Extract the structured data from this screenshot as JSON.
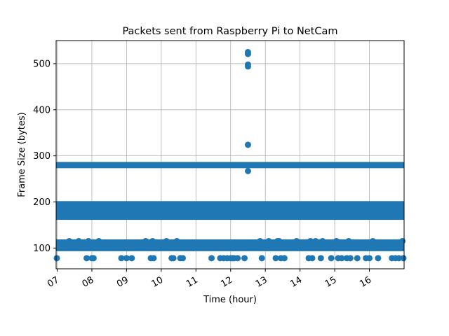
{
  "chart_data": {
    "type": "scatter",
    "title": "Packets sent from Raspberry Pi to NetCam",
    "xlabel": "Time (hour)",
    "ylabel": "Frame Size (bytes)",
    "x_unit": "hour of day",
    "xlim": [
      6.97,
      17.0
    ],
    "ylim": [
      55,
      550
    ],
    "xticks": [
      7,
      8,
      9,
      10,
      11,
      12,
      13,
      14,
      15,
      16
    ],
    "xtick_labels": [
      "07",
      "08",
      "09",
      "10",
      "11",
      "12",
      "13",
      "14",
      "15",
      "16"
    ],
    "yticks": [
      100,
      200,
      300,
      400,
      500
    ],
    "ytick_labels": [
      "100",
      "200",
      "300",
      "400",
      "500"
    ],
    "grid": true,
    "marker_color": "#1f77b4",
    "bands": [
      {
        "y_low": 168,
        "y_high": 195,
        "x_start": 6.97,
        "x_end": 17.0
      },
      {
        "y_low": 100,
        "y_high": 112,
        "x_start": 6.97,
        "x_end": 17.0
      },
      {
        "y_low": 280,
        "y_high": 280,
        "x_start": 6.97,
        "x_end": 17.0
      }
    ],
    "points": [
      {
        "x": 6.99,
        "y": 78
      },
      {
        "x": 7.35,
        "y": 115
      },
      {
        "x": 7.62,
        "y": 115
      },
      {
        "x": 7.85,
        "y": 78
      },
      {
        "x": 7.9,
        "y": 115
      },
      {
        "x": 8.0,
        "y": 78
      },
      {
        "x": 8.05,
        "y": 78
      },
      {
        "x": 8.2,
        "y": 115
      },
      {
        "x": 8.85,
        "y": 78
      },
      {
        "x": 9.0,
        "y": 78
      },
      {
        "x": 9.15,
        "y": 78
      },
      {
        "x": 9.55,
        "y": 115
      },
      {
        "x": 9.7,
        "y": 78
      },
      {
        "x": 9.75,
        "y": 115
      },
      {
        "x": 9.78,
        "y": 78
      },
      {
        "x": 10.15,
        "y": 115
      },
      {
        "x": 10.3,
        "y": 78
      },
      {
        "x": 10.35,
        "y": 78
      },
      {
        "x": 10.45,
        "y": 115
      },
      {
        "x": 10.55,
        "y": 78
      },
      {
        "x": 10.62,
        "y": 78
      },
      {
        "x": 11.45,
        "y": 78
      },
      {
        "x": 11.7,
        "y": 78
      },
      {
        "x": 11.8,
        "y": 78
      },
      {
        "x": 11.9,
        "y": 78
      },
      {
        "x": 12.0,
        "y": 78
      },
      {
        "x": 12.05,
        "y": 78
      },
      {
        "x": 12.1,
        "y": 78
      },
      {
        "x": 12.2,
        "y": 78
      },
      {
        "x": 12.4,
        "y": 78
      },
      {
        "x": 12.5,
        "y": 525
      },
      {
        "x": 12.5,
        "y": 521
      },
      {
        "x": 12.5,
        "y": 498
      },
      {
        "x": 12.5,
        "y": 494
      },
      {
        "x": 12.5,
        "y": 324
      },
      {
        "x": 12.5,
        "y": 267
      },
      {
        "x": 12.85,
        "y": 115
      },
      {
        "x": 12.9,
        "y": 78
      },
      {
        "x": 13.1,
        "y": 115
      },
      {
        "x": 13.3,
        "y": 78
      },
      {
        "x": 13.35,
        "y": 115
      },
      {
        "x": 13.4,
        "y": 115
      },
      {
        "x": 13.45,
        "y": 78
      },
      {
        "x": 13.55,
        "y": 78
      },
      {
        "x": 13.9,
        "y": 115
      },
      {
        "x": 14.25,
        "y": 78
      },
      {
        "x": 14.3,
        "y": 115
      },
      {
        "x": 14.35,
        "y": 78
      },
      {
        "x": 14.45,
        "y": 115
      },
      {
        "x": 14.6,
        "y": 78
      },
      {
        "x": 14.65,
        "y": 115
      },
      {
        "x": 14.9,
        "y": 78
      },
      {
        "x": 15.05,
        "y": 115
      },
      {
        "x": 15.1,
        "y": 78
      },
      {
        "x": 15.2,
        "y": 78
      },
      {
        "x": 15.35,
        "y": 78
      },
      {
        "x": 15.4,
        "y": 115
      },
      {
        "x": 15.45,
        "y": 78
      },
      {
        "x": 15.65,
        "y": 78
      },
      {
        "x": 15.9,
        "y": 78
      },
      {
        "x": 16.0,
        "y": 78
      },
      {
        "x": 16.1,
        "y": 115
      },
      {
        "x": 16.25,
        "y": 78
      },
      {
        "x": 16.65,
        "y": 78
      },
      {
        "x": 16.75,
        "y": 78
      },
      {
        "x": 16.85,
        "y": 78
      },
      {
        "x": 16.95,
        "y": 115
      },
      {
        "x": 16.98,
        "y": 78
      }
    ]
  }
}
